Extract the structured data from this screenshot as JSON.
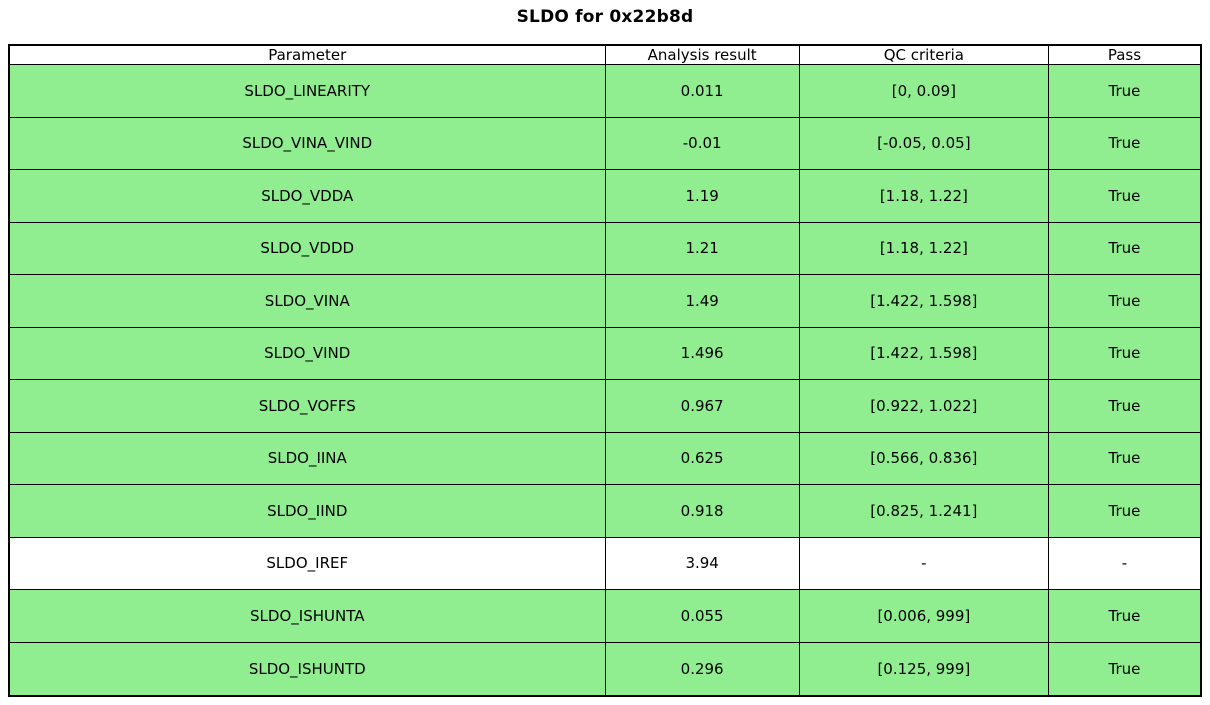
{
  "chart_data": {
    "type": "table",
    "title": "SLDO for 0x22b8d",
    "columns": [
      "Parameter",
      "Analysis result",
      "QC criteria",
      "Pass"
    ],
    "rows": [
      [
        "SLDO_LINEARITY",
        "0.011",
        "[0, 0.09]",
        "True"
      ],
      [
        "SLDO_VINA_VIND",
        "-0.01",
        "[-0.05, 0.05]",
        "True"
      ],
      [
        "SLDO_VDDA",
        "1.19",
        "[1.18, 1.22]",
        "True"
      ],
      [
        "SLDO_VDDD",
        "1.21",
        "[1.18, 1.22]",
        "True"
      ],
      [
        "SLDO_VINA",
        "1.49",
        "[1.422, 1.598]",
        "True"
      ],
      [
        "SLDO_VIND",
        "1.496",
        "[1.422, 1.598]",
        "True"
      ],
      [
        "SLDO_VOFFS",
        "0.967",
        "[0.922, 1.022]",
        "True"
      ],
      [
        "SLDO_IINA",
        "0.625",
        "[0.566, 0.836]",
        "True"
      ],
      [
        "SLDO_IIND",
        "0.918",
        "[0.825, 1.241]",
        "True"
      ],
      [
        "SLDO_IREF",
        "3.94",
        "-",
        "-"
      ],
      [
        "SLDO_ISHUNTA",
        "0.055",
        "[0.006, 999]",
        "True"
      ],
      [
        "SLDO_ISHUNTD",
        "0.296",
        "[0.125, 999]",
        "True"
      ]
    ],
    "row_highlight": [
      true,
      true,
      true,
      true,
      true,
      true,
      true,
      true,
      true,
      false,
      true,
      true
    ],
    "highlight_color": "#90EE90",
    "header_background": "#ffffff",
    "border_color": "#000000",
    "legend_position": "none",
    "grid": true
  }
}
